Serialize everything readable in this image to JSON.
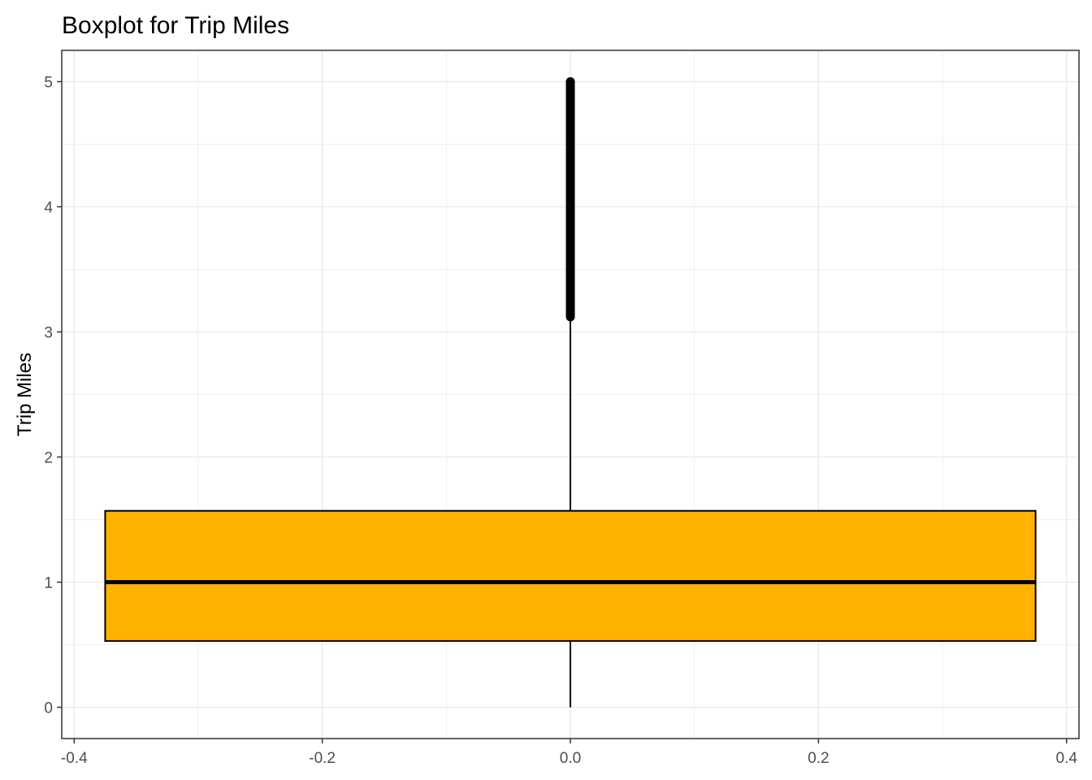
{
  "chart_data": {
    "type": "boxplot",
    "title": "Boxplot for Trip Miles",
    "xlabel": "",
    "ylabel": "Trip Miles",
    "xlim": [
      -0.41,
      0.41
    ],
    "ylim": [
      -0.25,
      5.25
    ],
    "x_ticks": [
      -0.4,
      -0.2,
      0.0,
      0.2,
      0.4
    ],
    "x_tick_labels": [
      "-0.4",
      "-0.2",
      "0.0",
      "0.2",
      "0.4"
    ],
    "y_ticks": [
      0,
      1,
      2,
      3,
      4,
      5
    ],
    "y_tick_labels": [
      "0",
      "1",
      "2",
      "3",
      "4",
      "5"
    ],
    "grid": true,
    "box": {
      "x_center": 0.0,
      "x_min": -0.375,
      "x_max": 0.375,
      "whisker_low": 0.0,
      "q1": 0.53,
      "median": 1.0,
      "q3": 1.57,
      "whisker_high": 3.12,
      "outliers_range": [
        3.12,
        5.0
      ],
      "fill": "#FFB300",
      "outline": "#000000"
    },
    "colors": {
      "background": "#FFFFFF",
      "grid": "#EBEBEB",
      "panel_border": "#333333",
      "tick_text": "#4D4D4D"
    }
  }
}
